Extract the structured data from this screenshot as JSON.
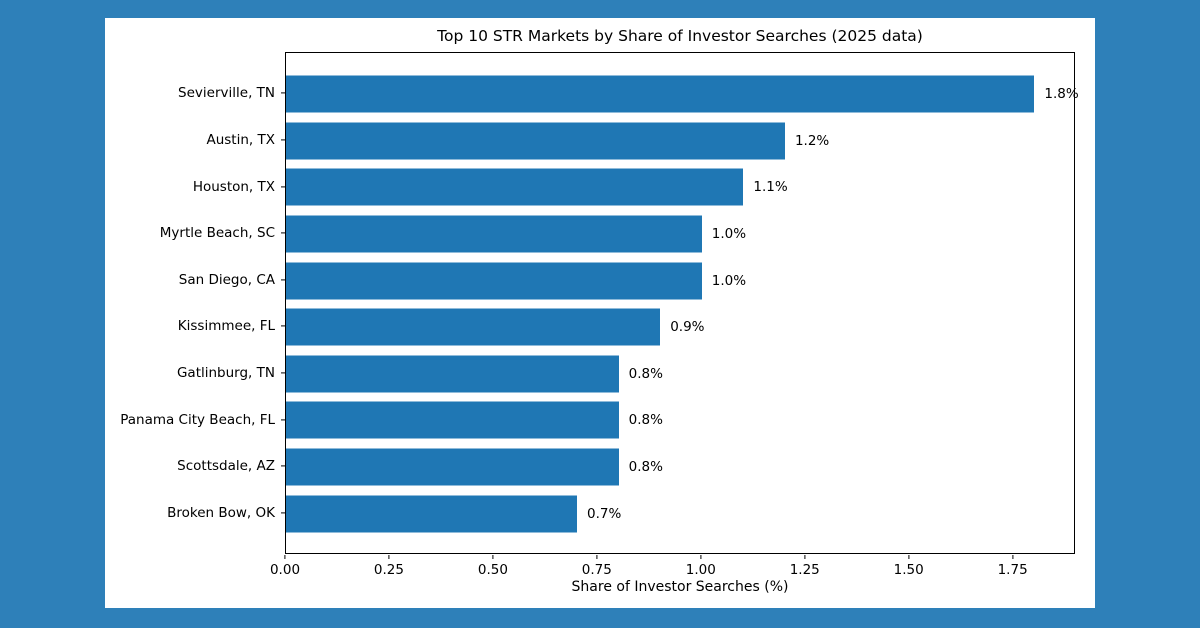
{
  "page": {
    "background_color": "#2e80b9",
    "figure_background_color": "#ffffff"
  },
  "chart_data": {
    "type": "bar",
    "orientation": "horizontal",
    "title": "Top 10 STR Markets by Share of Investor Searches (2025 data)",
    "xlabel": "Share of Investor Searches (%)",
    "ylabel": "",
    "categories": [
      "Sevierville, TN",
      "Austin, TX",
      "Houston, TX",
      "Myrtle Beach, SC",
      "San Diego, CA",
      "Kissimmee, FL",
      "Gatlinburg, TN",
      "Panama City Beach, FL",
      "Scottsdale, AZ",
      "Broken Bow, OK"
    ],
    "values": [
      1.8,
      1.2,
      1.1,
      1.0,
      1.0,
      0.9,
      0.8,
      0.8,
      0.8,
      0.7
    ],
    "value_labels": [
      "1.8%",
      "1.2%",
      "1.1%",
      "1.0%",
      "1.0%",
      "0.9%",
      "0.8%",
      "0.8%",
      "0.8%",
      "0.7%"
    ],
    "xlim": [
      0,
      1.9
    ],
    "xticks": [
      0,
      0.25,
      0.5,
      0.75,
      1.0,
      1.25,
      1.5,
      1.75
    ],
    "xtick_labels": [
      "0.00",
      "0.25",
      "0.50",
      "0.75",
      "1.00",
      "1.25",
      "1.50",
      "1.75"
    ],
    "bar_color": "#1f77b4",
    "grid": false,
    "legend_position": "none"
  }
}
